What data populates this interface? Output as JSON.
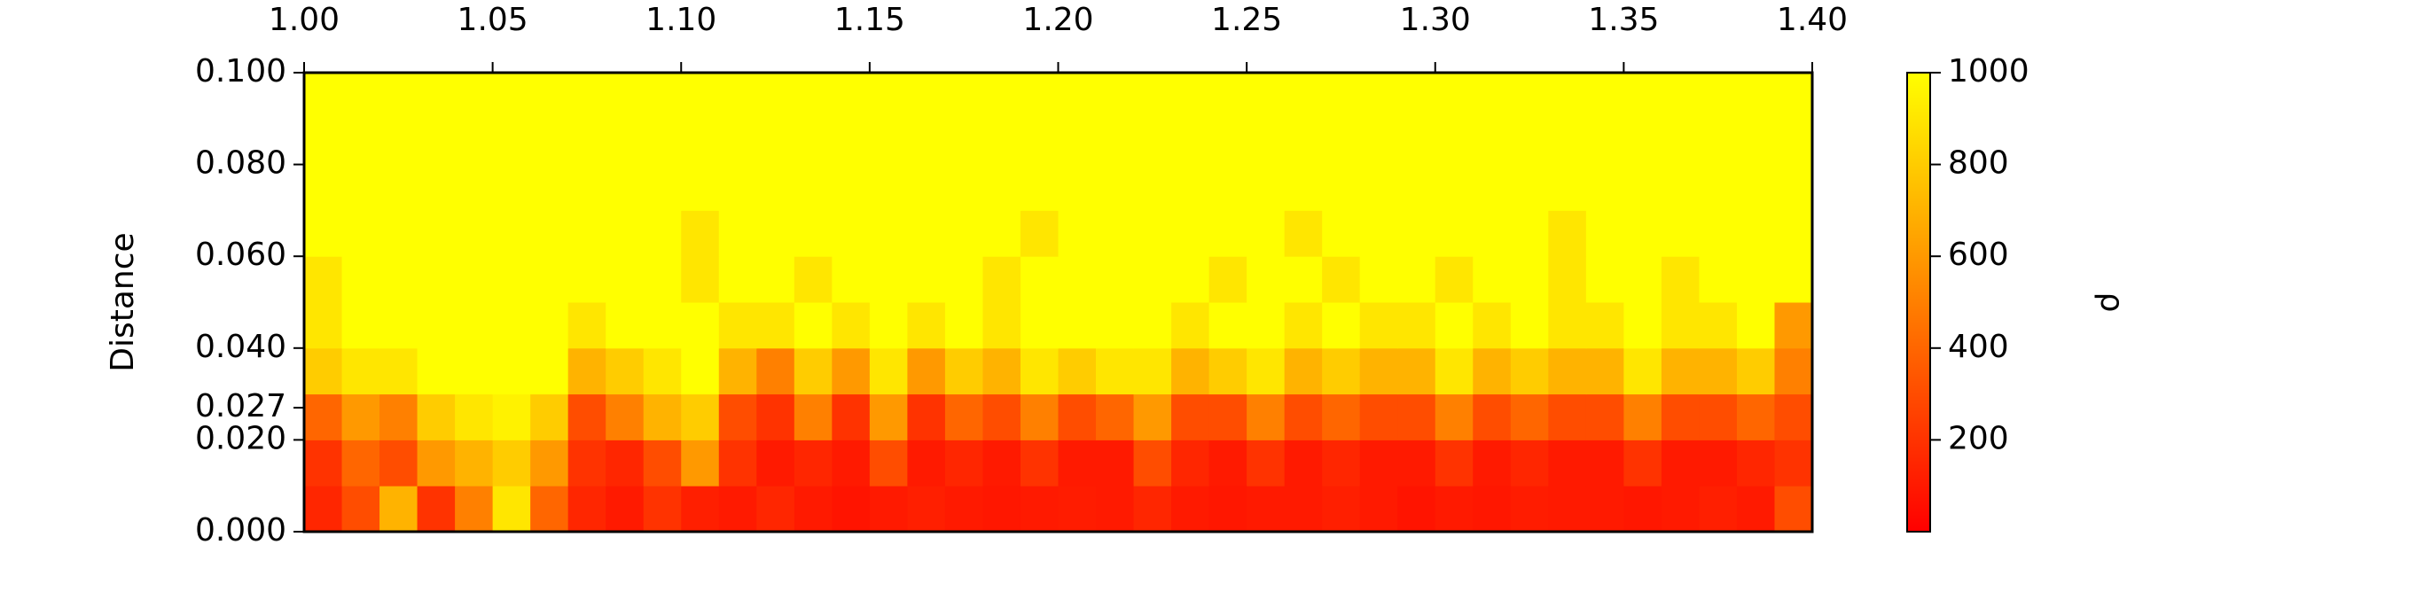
{
  "chart_data": {
    "type": "heatmap",
    "y_label": "Distance",
    "colorbar_label": "ρ",
    "x": [
      1.005,
      1.015,
      1.025,
      1.035,
      1.045,
      1.055,
      1.065,
      1.075,
      1.085,
      1.095,
      1.105,
      1.115,
      1.125,
      1.135,
      1.145,
      1.155,
      1.165,
      1.175,
      1.185,
      1.195,
      1.205,
      1.215,
      1.225,
      1.235,
      1.245,
      1.255,
      1.265,
      1.275,
      1.285,
      1.295,
      1.305,
      1.315,
      1.325,
      1.335,
      1.345,
      1.355,
      1.365,
      1.375,
      1.385,
      1.395
    ],
    "y": [
      0.005,
      0.015,
      0.025,
      0.035,
      0.045,
      0.055,
      0.065,
      0.075,
      0.085,
      0.095
    ],
    "values": [
      [
        150,
        300,
        700,
        200,
        500,
        900,
        400,
        150,
        100,
        200,
        120,
        100,
        150,
        100,
        80,
        100,
        120,
        100,
        90,
        100,
        110,
        100,
        150,
        100,
        90,
        100,
        100,
        120,
        100,
        80,
        100,
        90,
        110,
        100,
        100,
        90,
        100,
        120,
        100,
        300
      ],
      [
        200,
        400,
        300,
        600,
        700,
        800,
        600,
        200,
        150,
        300,
        600,
        200,
        100,
        150,
        100,
        300,
        100,
        150,
        100,
        200,
        100,
        100,
        300,
        150,
        100,
        200,
        100,
        150,
        100,
        100,
        200,
        100,
        150,
        100,
        100,
        200,
        100,
        100,
        150,
        200
      ],
      [
        400,
        600,
        500,
        800,
        900,
        950,
        800,
        300,
        500,
        700,
        800,
        300,
        200,
        500,
        200,
        600,
        200,
        400,
        300,
        500,
        300,
        400,
        600,
        300,
        300,
        500,
        300,
        400,
        300,
        300,
        500,
        300,
        400,
        300,
        300,
        500,
        300,
        300,
        400,
        300
      ],
      [
        800,
        900,
        900,
        1000,
        1000,
        1000,
        1000,
        700,
        800,
        900,
        1000,
        700,
        500,
        800,
        600,
        900,
        600,
        800,
        700,
        900,
        800,
        900,
        900,
        700,
        800,
        900,
        700,
        800,
        700,
        700,
        900,
        700,
        800,
        700,
        700,
        900,
        700,
        700,
        800,
        500
      ],
      [
        900,
        1000,
        1000,
        1000,
        1000,
        1000,
        1000,
        900,
        1000,
        1000,
        1000,
        900,
        900,
        1000,
        900,
        1000,
        900,
        1000,
        900,
        1000,
        1000,
        1000,
        1000,
        900,
        1000,
        1000,
        900,
        1000,
        900,
        900,
        1000,
        900,
        1000,
        900,
        900,
        1000,
        900,
        900,
        1000,
        600
      ],
      [
        900,
        1000,
        1000,
        1000,
        1000,
        1000,
        1000,
        1000,
        1000,
        1000,
        900,
        1000,
        1000,
        900,
        1000,
        1000,
        1000,
        1000,
        900,
        1000,
        1000,
        1000,
        1000,
        1000,
        900,
        1000,
        1000,
        900,
        1000,
        1000,
        900,
        1000,
        1000,
        900,
        1000,
        1000,
        900,
        1000,
        1000,
        1000
      ],
      [
        1000,
        1000,
        1000,
        1000,
        1000,
        1000,
        1000,
        1000,
        1000,
        1000,
        900,
        1000,
        1000,
        1000,
        1000,
        1000,
        1000,
        1000,
        1000,
        900,
        1000,
        1000,
        1000,
        1000,
        1000,
        1000,
        900,
        1000,
        1000,
        1000,
        1000,
        1000,
        1000,
        900,
        1000,
        1000,
        1000,
        1000,
        1000,
        1000
      ],
      [
        1000,
        1000,
        1000,
        1000,
        1000,
        1000,
        1000,
        1000,
        1000,
        1000,
        1000,
        1000,
        1000,
        1000,
        1000,
        1000,
        1000,
        1000,
        1000,
        1000,
        1000,
        1000,
        1000,
        1000,
        1000,
        1000,
        1000,
        1000,
        1000,
        1000,
        1000,
        1000,
        1000,
        1000,
        1000,
        1000,
        1000,
        1000,
        1000,
        1000
      ],
      [
        1000,
        1000,
        1000,
        1000,
        1000,
        1000,
        1000,
        1000,
        1000,
        1000,
        1000,
        1000,
        1000,
        1000,
        1000,
        1000,
        1000,
        1000,
        1000,
        1000,
        1000,
        1000,
        1000,
        1000,
        1000,
        1000,
        1000,
        1000,
        1000,
        1000,
        1000,
        1000,
        1000,
        1000,
        1000,
        1000,
        1000,
        1000,
        1000,
        1000
      ],
      [
        1000,
        1000,
        1000,
        1000,
        1000,
        1000,
        1000,
        1000,
        1000,
        1000,
        1000,
        1000,
        1000,
        1000,
        1000,
        1000,
        1000,
        1000,
        1000,
        1000,
        1000,
        1000,
        1000,
        1000,
        1000,
        1000,
        1000,
        1000,
        1000,
        1000,
        1000,
        1000,
        1000,
        1000,
        1000,
        1000,
        1000,
        1000,
        1000,
        1000
      ]
    ],
    "colormap": [
      "#ff0000",
      "#ffff00"
    ],
    "clim": [
      0,
      1000
    ],
    "cticks": [
      200,
      400,
      600,
      800,
      1000
    ],
    "xlim": [
      1.0,
      1.4
    ],
    "xticks": [
      {
        "value": 1.0,
        "label": "1.00"
      },
      {
        "value": 1.05,
        "label": "1.05"
      },
      {
        "value": 1.1,
        "label": "1.10"
      },
      {
        "value": 1.15,
        "label": "1.15"
      },
      {
        "value": 1.2,
        "label": "1.20"
      },
      {
        "value": 1.25,
        "label": "1.25"
      },
      {
        "value": 1.3,
        "label": "1.30"
      },
      {
        "value": 1.35,
        "label": "1.35"
      },
      {
        "value": 1.4,
        "label": "1.40"
      }
    ],
    "ylim": [
      0,
      0.1
    ],
    "yticks": [
      {
        "value": 0,
        "label": "0.000"
      },
      {
        "value": 0.02,
        "label": "0.020"
      },
      {
        "value": 0.027,
        "label": "0.027"
      },
      {
        "value": 0.04,
        "label": "0.040"
      },
      {
        "value": 0.06,
        "label": "0.060"
      },
      {
        "value": 0.08,
        "label": "0.080"
      },
      {
        "value": 0.1,
        "label": "0.100"
      }
    ]
  }
}
